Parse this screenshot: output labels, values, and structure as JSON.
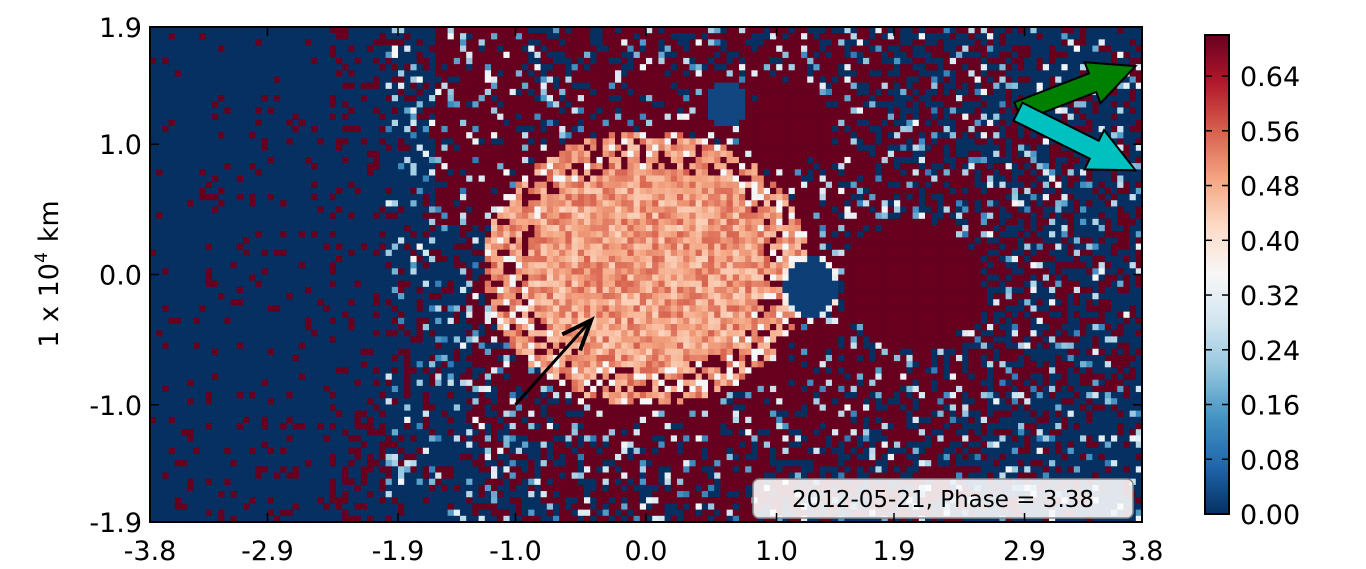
{
  "chart_data": {
    "type": "heatmap",
    "title": "",
    "xlabel": "",
    "ylabel_prefix": "1 x 10",
    "ylabel_exponent": "4",
    "ylabel_unit": "km",
    "xlim": [
      -3.8,
      3.8
    ],
    "ylim": [
      -1.9,
      1.9
    ],
    "x_ticks": [
      -3.8,
      -2.9,
      -1.9,
      -1.0,
      0.0,
      1.0,
      1.9,
      2.9,
      3.8
    ],
    "x_tick_labels": [
      "-3.8",
      "-2.9",
      "-1.9",
      "-1.0",
      "0.0",
      "1.0",
      "1.9",
      "2.9",
      "3.8"
    ],
    "y_ticks": [
      1.9,
      1.0,
      0.0,
      -1.0,
      -1.9
    ],
    "y_tick_labels": [
      "1.9",
      "1.0",
      "0.0",
      "-1.0",
      "-1.9"
    ],
    "colorbar": {
      "min": 0.0,
      "max": 0.7,
      "ticks": [
        0.0,
        0.08,
        0.16,
        0.24,
        0.32,
        0.4,
        0.48,
        0.56,
        0.64
      ],
      "tick_labels": [
        "0.00",
        "0.08",
        "0.16",
        "0.24",
        "0.32",
        "0.40",
        "0.48",
        "0.56",
        "0.64"
      ],
      "colormap": [
        "#053061",
        "#2166ac",
        "#4393c3",
        "#92c5de",
        "#d1e5f0",
        "#f7f7f7",
        "#fddbc7",
        "#f4a582",
        "#d6604d",
        "#b2182b",
        "#67001f"
      ]
    },
    "annotation": "2012-05-21, Phase = 3.38",
    "grid": false,
    "arrows": [
      {
        "name": "black-arrow",
        "color": "#000000",
        "from": [
          -1.0,
          -1.0
        ],
        "to": [
          -0.42,
          -0.35
        ]
      },
      {
        "name": "green-arrow",
        "color": "#008000",
        "from": [
          2.85,
          1.25
        ],
        "to": [
          3.75,
          1.6
        ]
      },
      {
        "name": "cyan-arrow",
        "color": "#00c0c0",
        "from": [
          2.85,
          1.25
        ],
        "to": [
          3.75,
          0.8
        ]
      }
    ],
    "features": [
      {
        "name": "nucleus-region",
        "x": 0.0,
        "y": 0.05,
        "rx": 1.25,
        "ry": 1.05,
        "value": 0.48
      },
      {
        "name": "dark-spot-lower",
        "x": 1.26,
        "y": -0.1,
        "rx": 0.23,
        "ry": 0.26,
        "value": 0.02
      },
      {
        "name": "dark-spot-upper",
        "x": 0.62,
        "y": 1.3,
        "rx": 0.16,
        "ry": 0.18,
        "value": 0.03
      },
      {
        "name": "high-block-right",
        "x": 2.05,
        "y": -0.08,
        "rx": 0.52,
        "ry": 0.5,
        "value": 0.7
      },
      {
        "name": "high-block-top",
        "x": 1.1,
        "y": 1.15,
        "rx": 0.35,
        "ry": 0.3,
        "value": 0.7
      }
    ]
  }
}
